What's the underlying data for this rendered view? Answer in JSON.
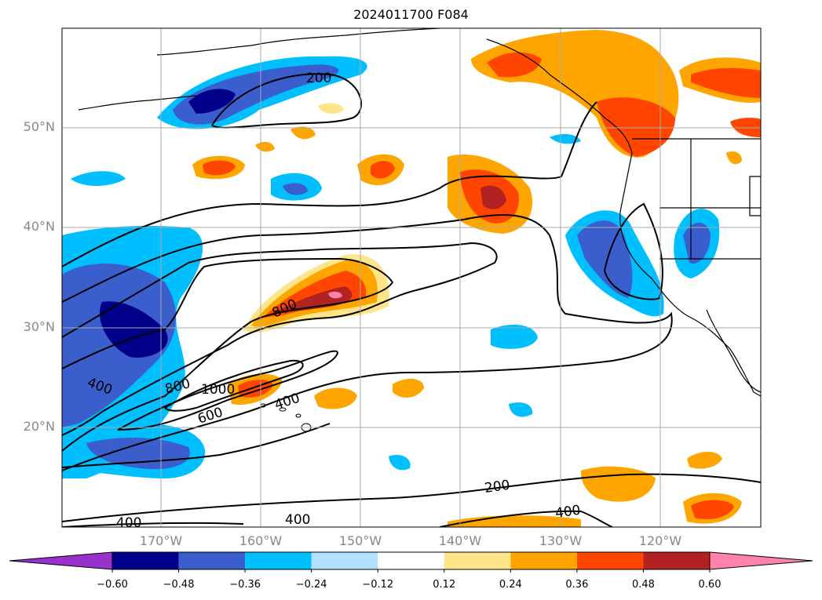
{
  "title": "2024011700 F084",
  "map": {
    "lat_labels": [
      {
        "text": "50°N",
        "lat": 50
      },
      {
        "text": "40°N",
        "lat": 40
      },
      {
        "text": "30°N",
        "lat": 30
      },
      {
        "text": "20°N",
        "lat": 20
      }
    ],
    "lon_labels": [
      {
        "text": "170°W",
        "lon": -170
      },
      {
        "text": "160°W",
        "lon": -160
      },
      {
        "text": "150°W",
        "lon": -150
      },
      {
        "text": "140°W",
        "lon": -140
      },
      {
        "text": "130°W",
        "lon": -130
      },
      {
        "text": "120°W",
        "lon": -120
      }
    ],
    "contour_labels": [
      "200",
      "400",
      "600",
      "800",
      "1000"
    ],
    "extent_lon": [
      -180,
      -110
    ],
    "extent_lat": [
      10,
      60
    ]
  },
  "colorbar": {
    "ticks": [
      "−0.60",
      "−0.48",
      "−0.36",
      "−0.24",
      "−0.12",
      "0.12",
      "0.24",
      "0.36",
      "0.48",
      "0.60"
    ],
    "colors": [
      "#9932cc",
      "#00008b",
      "#3a5fcd",
      "#00bfff",
      "#b0e2ff",
      "#ffffff",
      "#ffe58a",
      "#ffa500",
      "#ff4500",
      "#b22222",
      "#ff82ab"
    ]
  }
}
